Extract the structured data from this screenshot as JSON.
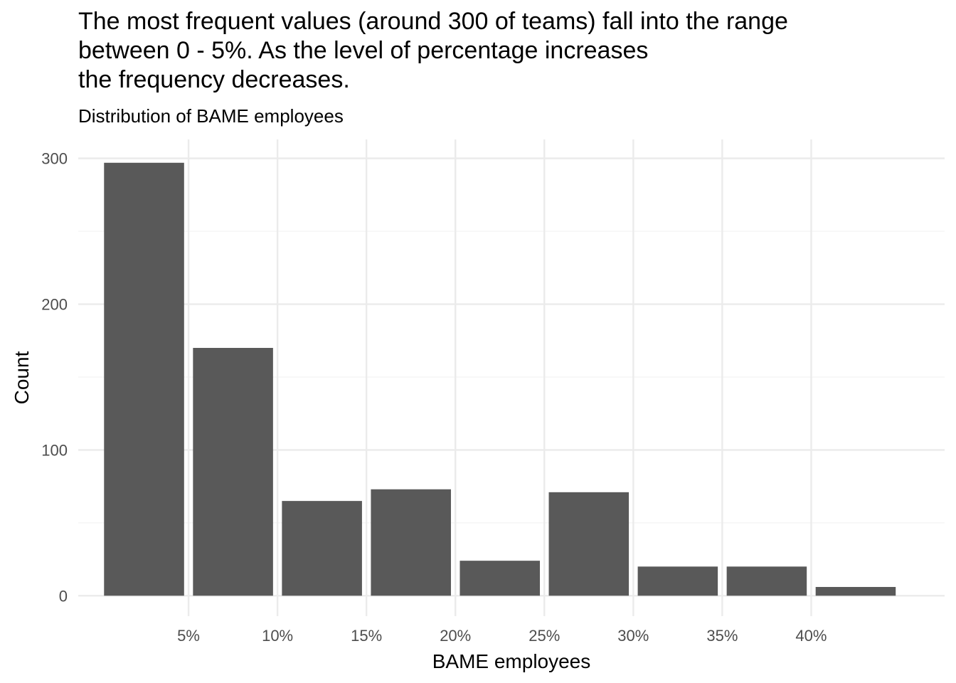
{
  "chart_data": {
    "type": "bar",
    "title": "The most frequent values (around 300 of teams) fall into the range\nbetween 0 - 5%. As the level of percentage increases\nthe frequency decreases.",
    "subtitle": "Distribution of BAME employees",
    "xlabel": "BAME employees",
    "ylabel": "Count",
    "bins": [
      {
        "start": 0,
        "end": 5,
        "value": 297
      },
      {
        "start": 5,
        "end": 10,
        "value": 170
      },
      {
        "start": 10,
        "end": 15,
        "value": 65
      },
      {
        "start": 15,
        "end": 20,
        "value": 73
      },
      {
        "start": 20,
        "end": 25,
        "value": 24
      },
      {
        "start": 25,
        "end": 30,
        "value": 71
      },
      {
        "start": 30,
        "end": 35,
        "value": 20
      },
      {
        "start": 35,
        "end": 40,
        "value": 20
      },
      {
        "start": 40,
        "end": 45,
        "value": 6
      }
    ],
    "xlim": [
      -1.2,
      47.5
    ],
    "ylim": [
      -14,
      313
    ],
    "x_ticks": [
      {
        "value": 5,
        "label": "5%"
      },
      {
        "value": 10,
        "label": "10%"
      },
      {
        "value": 15,
        "label": "15%"
      },
      {
        "value": 20,
        "label": "20%"
      },
      {
        "value": 25,
        "label": "25%"
      },
      {
        "value": 30,
        "label": "30%"
      },
      {
        "value": 35,
        "label": "35%"
      },
      {
        "value": 40,
        "label": "40%"
      }
    ],
    "y_ticks": [
      {
        "value": 0,
        "label": "0"
      },
      {
        "value": 100,
        "label": "100"
      },
      {
        "value": 200,
        "label": "200"
      },
      {
        "value": 300,
        "label": "300"
      }
    ],
    "y_minor_ticks": [
      50,
      150,
      250
    ],
    "grid": true,
    "legend": "none",
    "colors": {
      "bar": "#595959",
      "grid_major": "#ebebeb",
      "grid_minor": "#f3f3f3",
      "tick_text": "#4d4d4d",
      "text": "#000000"
    }
  }
}
